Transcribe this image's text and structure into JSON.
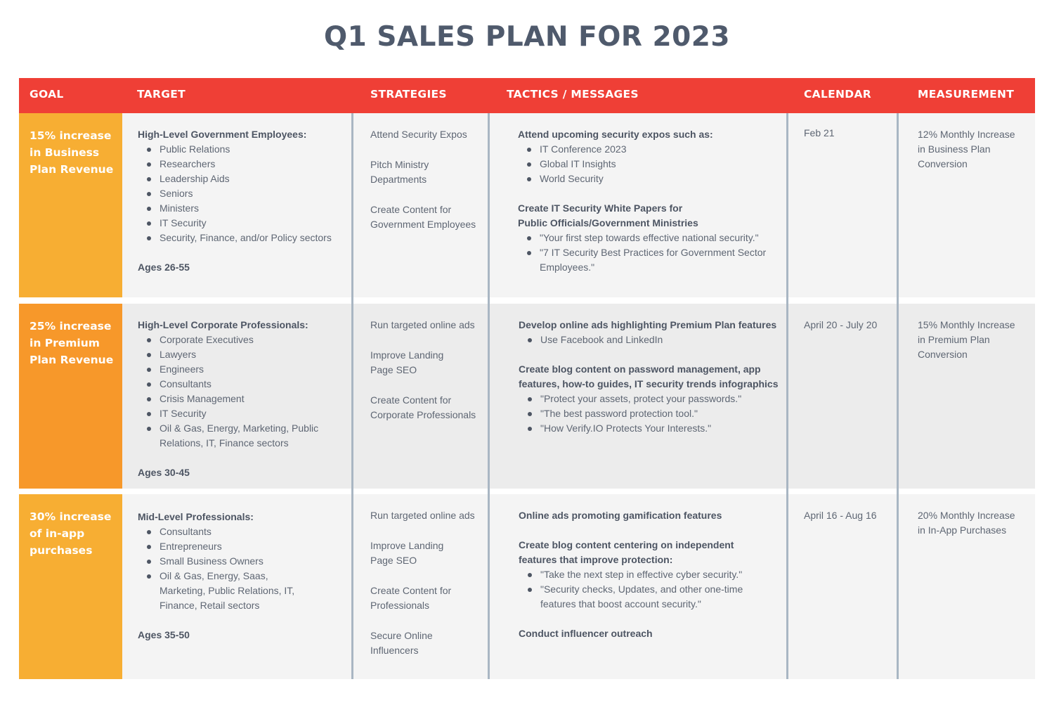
{
  "title": "Q1 SALES PLAN FOR 2023",
  "colors": {
    "header": "#ef3f36",
    "goal_yellow": "#f7ae33",
    "goal_orange": "#f7982a",
    "divider": "#a9b6c3"
  },
  "headers": {
    "goal": "GOAL",
    "target": "TARGET",
    "strategies": "STRATEGIES",
    "tactics": "TACTICS / MESSAGES",
    "calendar": "CALENDAR",
    "measurement": "MEASUREMENT"
  },
  "rows": [
    {
      "goal": "15% increase in Business Plan Revenue",
      "target": {
        "heading": "High-Level Government Employees:",
        "items": [
          "Public Relations",
          "Researchers",
          "Leadership Aids",
          "Seniors",
          "Ministers",
          "IT Security",
          "Security, Finance, and/or Policy sectors"
        ],
        "ages": "Ages 26-55"
      },
      "strategies": [
        "Attend Security Expos",
        "Pitch Ministry Departments",
        "Create Content for Government Employees"
      ],
      "tactics": [
        {
          "heading": "Attend upcoming security expos such as:",
          "items": [
            "IT Conference 2023",
            "Global IT Insights",
            "World Security"
          ]
        },
        {
          "heading": "Create IT Security White Papers for Public Officials/Government Ministries",
          "items": [
            "\"Your first step towards effective national security.\"",
            "\"7 IT Security Best Practices for Government Sector Employees.\""
          ]
        }
      ],
      "calendar": "Feb 21",
      "measurement": "12% Monthly Increase in Business Plan Conversion"
    },
    {
      "goal": "25% increase in Premium Plan Revenue",
      "target": {
        "heading": "High-Level Corporate Professionals:",
        "items": [
          "Corporate Executives",
          "Lawyers",
          "Engineers",
          "Consultants",
          "Crisis Management",
          "IT Security",
          "Oil & Gas, Energy, Marketing, Public Relations, IT, Finance sectors"
        ],
        "ages": "Ages 30-45"
      },
      "strategies": [
        "Run targeted online ads",
        "Improve Landing Page SEO",
        "Create Content for Corporate Professionals"
      ],
      "tactics": [
        {
          "heading": "Develop online ads highlighting Premium Plan features",
          "items": [
            "Use Facebook and LinkedIn"
          ]
        },
        {
          "heading": "Create blog content on password management, app features, how-to guides, IT security trends infographics",
          "items": [
            "\"Protect your assets, protect your passwords.\"",
            "\"The best password protection tool.\"",
            "\"How Verify.IO Protects Your Interests.\""
          ]
        }
      ],
      "calendar": "April 20 - July 20",
      "measurement": "15% Monthly Increase in Premium Plan Conversion"
    },
    {
      "goal": "30% increase of in-app purchases",
      "target": {
        "heading": "Mid-Level Professionals:",
        "items": [
          "Consultants",
          "Entrepreneurs",
          "Small Business Owners",
          "Oil & Gas, Energy, Saas, Marketing, Public Relations, IT, Finance, Retail sectors"
        ],
        "ages": "Ages 35-50"
      },
      "strategies": [
        "Run targeted online ads",
        "Improve Landing Page SEO",
        "Create Content for Professionals",
        "Secure Online Influencers"
      ],
      "tactics": [
        {
          "heading": "Online ads promoting gamification features",
          "items": []
        },
        {
          "heading": "Create blog content centering on independent features that improve protection:",
          "items": [
            "\"Take the next step in effective cyber security.\"",
            "\"Security checks, Updates, and other one-time features that boost account security.\""
          ]
        },
        {
          "heading": "Conduct influencer outreach",
          "items": []
        }
      ],
      "calendar": "April 16 - Aug 16",
      "measurement": "20% Monthly Increase in In-App Purchases"
    }
  ]
}
